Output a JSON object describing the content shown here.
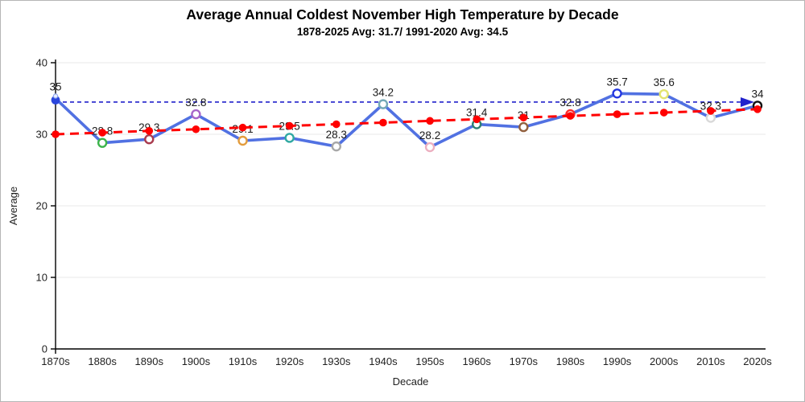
{
  "chart_data": {
    "type": "line",
    "title": "Average Annual Coldest November High Temperature by Decade",
    "subtitle": "1878-2025 Avg: 31.7/ 1991-2020 Avg: 34.5",
    "xlabel": "Decade",
    "ylabel": "Average",
    "ylim": [
      0,
      40
    ],
    "yticks": [
      0,
      10,
      20,
      30,
      40
    ],
    "grid": true,
    "legend": "none",
    "categories": [
      "1870s",
      "1880s",
      "1890s",
      "1900s",
      "1910s",
      "1920s",
      "1930s",
      "1940s",
      "1950s",
      "1960s",
      "1970s",
      "1980s",
      "1990s",
      "2000s",
      "2010s",
      "2020s"
    ],
    "series": [
      {
        "name": "Coldest November high temperature by decade",
        "color": "#5171E2",
        "style": "solid",
        "values": [
          35,
          28.8,
          29.3,
          32.8,
          29.1,
          29.5,
          28.3,
          34.2,
          28.2,
          31.4,
          31,
          32.8,
          35.7,
          35.6,
          32.3,
          34
        ],
        "point_labels": [
          "35",
          "28.8",
          "29.3",
          "32.8",
          "29.1",
          "29.5",
          "28.3",
          "34.2",
          "28.2",
          "31.4",
          "31",
          "32.8",
          "35.7",
          "35.6",
          "32.3",
          "34"
        ],
        "marker_colors": [
          "#2B46DD",
          "#3CB44B",
          "#A93B4E",
          "#A765C9",
          "#E39C3C",
          "#30A9A2",
          "#A8A8A8",
          "#73A9B8",
          "#ECAFC0",
          "#2E8074",
          "#91603E",
          "#FF2A2A",
          "#2437E0",
          "#E3E46E",
          "#D8D8D8",
          "#111111"
        ]
      },
      {
        "name": "Linear trend",
        "color": "#FF0000",
        "style": "dashed-with-dots",
        "values": [
          30,
          30.23,
          30.47,
          30.7,
          30.93,
          31.17,
          31.4,
          31.63,
          31.87,
          32.1,
          32.33,
          32.57,
          32.8,
          33.03,
          33.27,
          33.5
        ]
      }
    ],
    "reference_line": {
      "name": "1991-2020 average",
      "value": 34.5,
      "color": "#2222CC",
      "style": "dashed-arrow-right"
    },
    "colors": {
      "grid": "#E8E8E8",
      "axis": "#000000",
      "tick_text": "#1F1F1F",
      "data_label_text": "#1A1A1A"
    }
  }
}
